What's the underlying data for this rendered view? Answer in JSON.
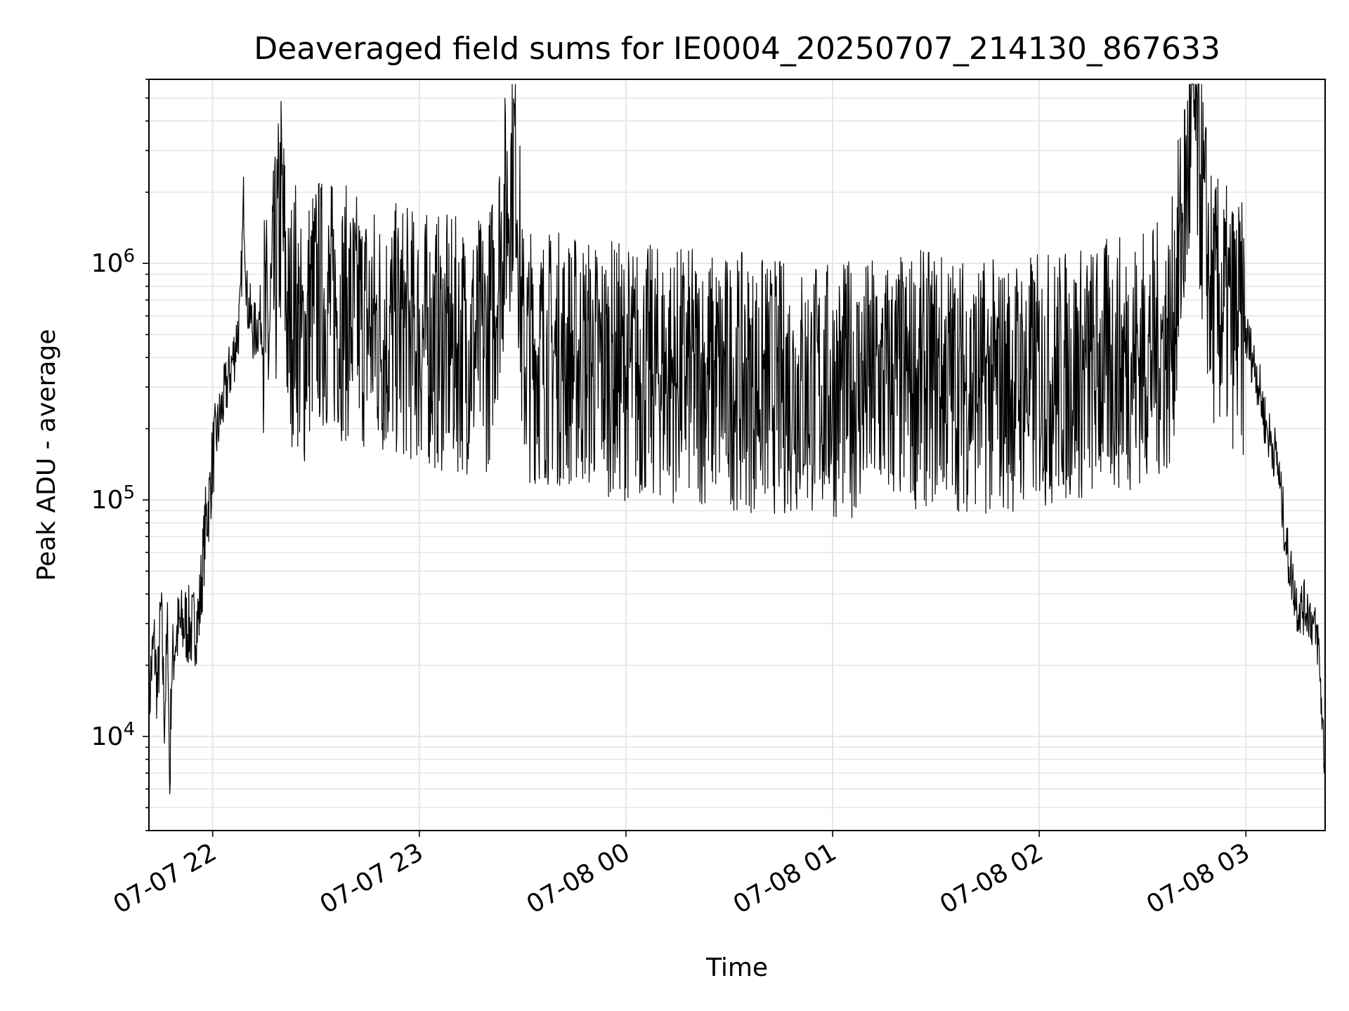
{
  "chart_data": {
    "type": "line",
    "title": "Deaveraged field sums for IE0004_20250707_214130_867633",
    "xlabel": "Time",
    "ylabel": "Peak ADU - average",
    "yscale": "log",
    "ylim": [
      4000,
      6000000
    ],
    "xlim": [
      "2025-07-07 21:41:30",
      "2025-07-08 03:23:00"
    ],
    "grid": true,
    "grid_color": "#e6e6e6",
    "line_color": "#000000",
    "x_ticks": [
      {
        "value": "2025-07-07 22:00",
        "label": "07-07 22"
      },
      {
        "value": "2025-07-07 23:00",
        "label": "07-07 23"
      },
      {
        "value": "2025-07-08 00:00",
        "label": "07-08 00"
      },
      {
        "value": "2025-07-08 01:00",
        "label": "07-08 01"
      },
      {
        "value": "2025-07-08 02:00",
        "label": "07-08 02"
      },
      {
        "value": "2025-07-08 03:00",
        "label": "07-08 03"
      }
    ],
    "y_ticks": [
      {
        "value": 10000,
        "base": "10",
        "exp": "4"
      },
      {
        "value": 100000,
        "base": "10",
        "exp": "5"
      },
      {
        "value": 1000000,
        "base": "10",
        "exp": "6"
      }
    ],
    "series": [
      {
        "x": [
          "2025-07-07 21:41:30",
          "2025-07-07 21:42:00",
          "2025-07-07 21:43:00",
          "2025-07-07 21:44:00",
          "2025-07-07 21:45:00",
          "2025-07-07 21:46:00",
          "2025-07-07 21:47:00",
          "2025-07-07 21:47:30",
          "2025-07-07 21:48:00",
          "2025-07-07 21:49:00",
          "2025-07-07 21:50:00",
          "2025-07-07 21:52:00",
          "2025-07-07 21:54:00",
          "2025-07-07 21:56:00",
          "2025-07-07 21:58:00",
          "2025-07-07 21:59:00",
          "2025-07-07 22:00:00",
          "2025-07-07 22:02:00",
          "2025-07-07 22:04:00",
          "2025-07-07 22:06:00",
          "2025-07-07 22:08:00",
          "2025-07-07 22:09:00",
          "2025-07-07 22:10:00",
          "2025-07-07 22:12:00",
          "2025-07-07 22:14:00",
          "2025-07-07 22:16:00",
          "2025-07-07 22:18:00",
          "2025-07-07 22:20:00",
          "2025-07-07 22:22:00",
          "2025-07-07 22:24:00",
          "2025-07-07 22:26:00",
          "2025-07-07 22:28:00",
          "2025-07-07 22:30:00",
          "2025-07-07 22:35:00",
          "2025-07-07 22:40:00",
          "2025-07-07 22:45:00",
          "2025-07-07 22:50:00",
          "2025-07-07 22:55:00",
          "2025-07-07 23:00:00",
          "2025-07-07 23:10:00",
          "2025-07-07 23:20:00",
          "2025-07-07 23:28:00",
          "2025-07-07 23:30:00",
          "2025-07-07 23:40:00",
          "2025-07-07 23:50:00",
          "2025-07-08 00:00:00",
          "2025-07-08 00:15:00",
          "2025-07-08 00:30:00",
          "2025-07-08 00:45:00",
          "2025-07-08 01:00:00",
          "2025-07-08 01:15:00",
          "2025-07-08 01:30:00",
          "2025-07-08 01:45:00",
          "2025-07-08 02:00:00",
          "2025-07-08 02:15:00",
          "2025-07-08 02:30:00",
          "2025-07-08 02:38:00",
          "2025-07-08 02:45:00",
          "2025-07-08 02:50:00",
          "2025-07-08 02:55:00",
          "2025-07-08 03:00:00",
          "2025-07-08 03:03:00",
          "2025-07-08 03:06:00",
          "2025-07-08 03:09:00",
          "2025-07-08 03:12:00",
          "2025-07-08 03:15:00",
          "2025-07-08 03:18:00",
          "2025-07-08 03:21:00",
          "2025-07-08 03:23:00"
        ],
        "y": [
          12000,
          18000,
          25000,
          15000,
          35000,
          12000,
          30000,
          5500,
          18000,
          25000,
          28000,
          30000,
          28000,
          32000,
          80000,
          100000,
          150000,
          220000,
          300000,
          400000,
          600000,
          1900000,
          700000,
          500000,
          600000,
          450000,
          800000,
          1800000,
          500000,
          700000,
          400000,
          600000,
          700000,
          650000,
          600000,
          550000,
          500000,
          520000,
          480000,
          450000,
          460000,
          3300000,
          420000,
          400000,
          380000,
          350000,
          340000,
          320000,
          300000,
          290000,
          310000,
          330000,
          300000,
          320000,
          350000,
          400000,
          450000,
          4300000,
          700000,
          600000,
          500000,
          350000,
          200000,
          150000,
          60000,
          35000,
          35000,
          25000,
          7000
        ]
      }
    ]
  }
}
